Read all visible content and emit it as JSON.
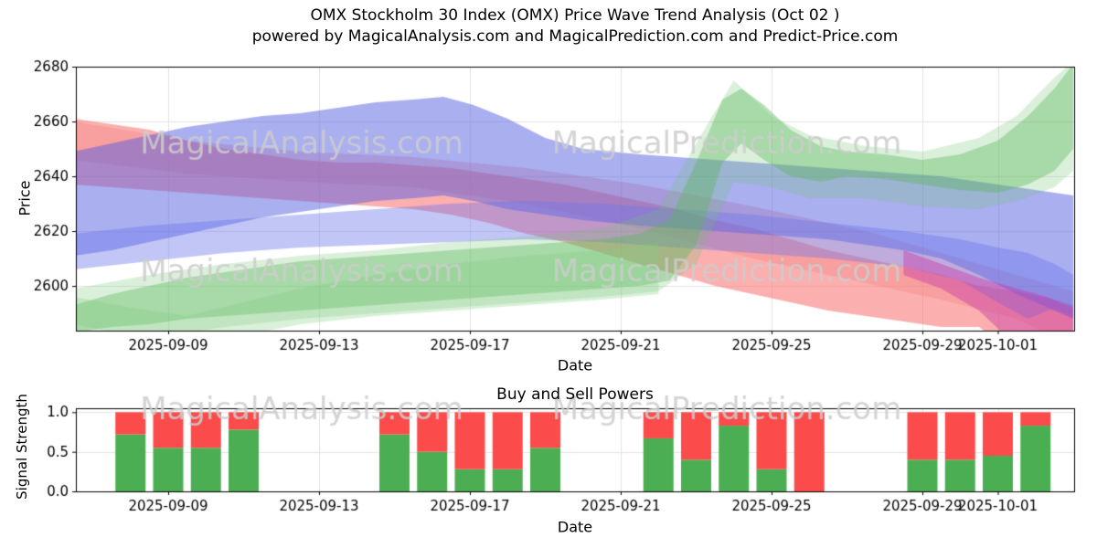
{
  "watermark": {
    "color": "rgba(205,205,205,0.85)",
    "items": [
      "MagicalAnalysis.com",
      "MagicalPrediction.com"
    ]
  },
  "chart_data": [
    {
      "type": "area",
      "title": "OMX Stockholm 30 Index (OMX) Price Wave Trend Analysis (Oct 02 )",
      "subtitle": "powered by MagicalAnalysis.com and MagicalPrediction.com and Predict-Price.com",
      "xlabel": "Date",
      "ylabel": "Price",
      "ylim": [
        2583.7,
        2680
      ],
      "yticks": [
        2600,
        2620,
        2640,
        2660,
        2680
      ],
      "xticks": [
        {
          "t": 2.5,
          "label": "2025-09-09"
        },
        {
          "t": 6.5,
          "label": "2025-09-13"
        },
        {
          "t": 10.5,
          "label": "2025-09-17"
        },
        {
          "t": 14.5,
          "label": "2025-09-21"
        },
        {
          "t": 18.5,
          "label": "2025-09-25"
        },
        {
          "t": 22.5,
          "label": "2025-09-29"
        },
        {
          "t": 24.5,
          "label": "2025-10-01"
        }
      ],
      "grid": true,
      "bands": [
        {
          "name": "sell-wave-main",
          "color": "rgba(250,110,110,0.55)",
          "points": [
            [
              0,
              2637,
              2661
            ],
            [
              1,
              2636,
              2659
            ],
            [
              2,
              2635,
              2657
            ],
            [
              3,
              2634,
              2653
            ],
            [
              4,
              2633,
              2650
            ],
            [
              5,
              2632,
              2648
            ],
            [
              6,
              2631,
              2646
            ],
            [
              7,
              2630,
              2645
            ],
            [
              8,
              2629,
              2645
            ],
            [
              9,
              2628,
              2644
            ],
            [
              10,
              2626,
              2643
            ],
            [
              11,
              2623,
              2641
            ],
            [
              12,
              2619,
              2639
            ],
            [
              13,
              2616,
              2637
            ],
            [
              14,
              2612,
              2634
            ],
            [
              15,
              2608,
              2631
            ],
            [
              16,
              2604,
              2628
            ],
            [
              17,
              2600,
              2624
            ],
            [
              18,
              2597,
              2621
            ],
            [
              19,
              2594,
              2617
            ],
            [
              20,
              2591,
              2613
            ],
            [
              21,
              2589,
              2610
            ],
            [
              22,
              2587,
              2607
            ],
            [
              23,
              2585,
              2604
            ],
            [
              24,
              2585,
              2600
            ],
            [
              25,
              2575,
              2598
            ],
            [
              26,
              2555,
              2595
            ],
            [
              26.5,
              2545,
              2593
            ]
          ]
        },
        {
          "name": "sell-wave-secondary",
          "color": "rgba(240,130,130,0.35)",
          "points": [
            [
              0,
              2646,
              2660
            ],
            [
              3,
              2641,
              2653
            ],
            [
              6,
              2638,
              2649
            ],
            [
              9,
              2636,
              2647
            ],
            [
              12,
              2630,
              2643
            ],
            [
              15,
              2621,
              2637
            ],
            [
              18,
              2610,
              2629
            ],
            [
              21,
              2601,
              2620
            ],
            [
              23,
              2595,
              2612
            ],
            [
              25,
              2588,
              2604
            ],
            [
              26.5,
              2578,
              2598
            ]
          ]
        },
        {
          "name": "trend-wave-main",
          "color": "rgba(85,95,225,0.50)",
          "points": [
            [
              0,
              2611,
              2649
            ],
            [
              1,
              2613,
              2652
            ],
            [
              2,
              2616,
              2655
            ],
            [
              3,
              2619,
              2658
            ],
            [
              4,
              2622,
              2660
            ],
            [
              5,
              2625,
              2662
            ],
            [
              6,
              2627,
              2663
            ],
            [
              7,
              2629,
              2665
            ],
            [
              8,
              2631,
              2667
            ],
            [
              9,
              2632,
              2668
            ],
            [
              9.8,
              2633,
              2669
            ],
            [
              10.6,
              2631,
              2666
            ],
            [
              11.5,
              2628,
              2661
            ],
            [
              12.5,
              2626,
              2654
            ],
            [
              13.5,
              2624,
              2650
            ],
            [
              15,
              2622,
              2648
            ],
            [
              16,
              2621,
              2647
            ],
            [
              17,
              2620,
              2646
            ],
            [
              18,
              2619,
              2645
            ],
            [
              19,
              2618,
              2644
            ],
            [
              20,
              2617,
              2643
            ],
            [
              21,
              2615,
              2642
            ],
            [
              22,
              2613,
              2641
            ],
            [
              23,
              2610,
              2640
            ],
            [
              24,
              2604,
              2638
            ],
            [
              25,
              2597,
              2636
            ],
            [
              26,
              2591,
              2634
            ],
            [
              26.5,
              2588,
              2633
            ]
          ]
        },
        {
          "name": "trend-wave-secondary",
          "color": "rgba(110,120,235,0.42)",
          "points": [
            [
              0,
              2606,
              2619
            ],
            [
              2,
              2609,
              2622
            ],
            [
              4,
              2612,
              2624
            ],
            [
              6,
              2614,
              2626
            ],
            [
              8,
              2615,
              2628
            ],
            [
              10,
              2616,
              2630
            ],
            [
              12,
              2617,
              2631
            ],
            [
              14,
              2616,
              2630
            ],
            [
              16,
              2614,
              2628
            ],
            [
              18,
              2612,
              2626
            ],
            [
              20,
              2610,
              2623
            ],
            [
              22,
              2607,
              2620
            ],
            [
              23.5,
              2602,
              2617
            ],
            [
              24.5,
              2594,
              2614
            ],
            [
              25.3,
              2588,
              2612
            ],
            [
              26,
              2592,
              2608
            ],
            [
              26.5,
              2589,
              2604
            ]
          ]
        },
        {
          "name": "buy-wave-main",
          "color": "rgba(85,180,85,0.40)",
          "points": [
            [
              0,
              2583,
              2593
            ],
            [
              1,
              2585,
              2597
            ],
            [
              2,
              2586,
              2600
            ],
            [
              3,
              2588,
              2603
            ],
            [
              4,
              2589,
              2605
            ],
            [
              5,
              2590,
              2607
            ],
            [
              6,
              2591,
              2609
            ],
            [
              7,
              2592,
              2610
            ],
            [
              8,
              2593,
              2611
            ],
            [
              9,
              2594,
              2612
            ],
            [
              10,
              2595,
              2613
            ],
            [
              11,
              2596,
              2614
            ],
            [
              12,
              2597,
              2615
            ],
            [
              13,
              2598,
              2616
            ],
            [
              14,
              2599,
              2617
            ],
            [
              15,
              2600,
              2619
            ],
            [
              15.8,
              2602,
              2624
            ],
            [
              16.5,
              2615,
              2645
            ],
            [
              17.2,
              2645,
              2668
            ],
            [
              17.7,
              2652,
              2672
            ],
            [
              18.3,
              2646,
              2666
            ],
            [
              19,
              2640,
              2657
            ],
            [
              19.8,
              2638,
              2651
            ],
            [
              20.5,
              2640,
              2649
            ],
            [
              21.5,
              2639,
              2648
            ],
            [
              22.5,
              2637,
              2646
            ],
            [
              23.5,
              2635,
              2648
            ],
            [
              24.5,
              2634,
              2653
            ],
            [
              25.3,
              2637,
              2662
            ],
            [
              26,
              2642,
              2672
            ],
            [
              26.5,
              2650,
              2681
            ]
          ]
        },
        {
          "name": "buy-wave-wide",
          "color": "rgba(110,195,110,0.25)",
          "points": [
            [
              0,
              2577,
              2599
            ],
            [
              2,
              2581,
              2604
            ],
            [
              4,
              2585,
              2608
            ],
            [
              6,
              2588,
              2611
            ],
            [
              8,
              2590,
              2613
            ],
            [
              10,
              2592,
              2616
            ],
            [
              12,
              2594,
              2618
            ],
            [
              14,
              2596,
              2621
            ],
            [
              15.5,
              2598,
              2628
            ],
            [
              16.5,
              2608,
              2652
            ],
            [
              17.5,
              2638,
              2675
            ],
            [
              18.5,
              2636,
              2662
            ],
            [
              19.5,
              2632,
              2655
            ],
            [
              21,
              2632,
              2651
            ],
            [
              22.5,
              2629,
              2649
            ],
            [
              24,
              2628,
              2654
            ],
            [
              25,
              2631,
              2662
            ],
            [
              26,
              2636,
              2676
            ],
            [
              26.5,
              2642,
              2682
            ]
          ]
        },
        {
          "name": "buy-wave-low",
          "color": "rgba(130,205,130,0.30)",
          "points": [
            [
              0,
              2586,
              2596
            ],
            [
              1.5,
              2582,
              2592
            ],
            [
              3,
              2579,
              2589
            ],
            [
              4.5,
              2582,
              2594
            ],
            [
              6,
              2586,
              2599
            ],
            [
              8,
              2589,
              2604
            ],
            [
              10,
              2591,
              2608
            ],
            [
              12,
              2593,
              2611
            ],
            [
              14,
              2595,
              2613
            ],
            [
              15.5,
              2597,
              2616
            ]
          ]
        },
        {
          "name": "momentum-wave-right",
          "color": "rgba(200,60,170,0.45)",
          "points": [
            [
              22,
              2604,
              2613
            ],
            [
              23,
              2599,
              2608
            ],
            [
              24,
              2591,
              2603
            ],
            [
              25,
              2578,
              2599
            ],
            [
              25.8,
              2562,
              2596
            ],
            [
              26.5,
              2542,
              2592
            ]
          ]
        }
      ]
    },
    {
      "type": "bar",
      "title": "Buy and Sell Powers",
      "xlabel": "Date",
      "ylabel": "Signal Strength",
      "ylim": [
        0,
        1.05
      ],
      "yticks": [
        "0.0",
        "0.5",
        "1.0"
      ],
      "xticks": [
        {
          "t": 2.5,
          "label": "2025-09-09"
        },
        {
          "t": 6.5,
          "label": "2025-09-13"
        },
        {
          "t": 10.5,
          "label": "2025-09-17"
        },
        {
          "t": 14.5,
          "label": "2025-09-21"
        },
        {
          "t": 18.5,
          "label": "2025-09-25"
        },
        {
          "t": 22.5,
          "label": "2025-09-29"
        },
        {
          "t": 24.5,
          "label": "2025-10-01"
        }
      ],
      "series": [
        {
          "name": "Buy",
          "color": "#4cae52"
        },
        {
          "name": "Sell",
          "color": "#fb4b4b"
        }
      ],
      "bars": [
        {
          "date": "2025-09-08",
          "buy": 0.72,
          "sell": 0.28
        },
        {
          "date": "2025-09-09",
          "buy": 0.55,
          "sell": 0.45
        },
        {
          "date": "2025-09-10",
          "buy": 0.55,
          "sell": 0.45
        },
        {
          "date": "2025-09-11",
          "buy": 0.78,
          "sell": 0.22
        },
        {
          "date": "2025-09-15",
          "buy": 0.72,
          "sell": 0.28
        },
        {
          "date": "2025-09-16",
          "buy": 0.5,
          "sell": 0.5
        },
        {
          "date": "2025-09-17",
          "buy": 0.28,
          "sell": 0.72
        },
        {
          "date": "2025-09-18",
          "buy": 0.28,
          "sell": 0.72
        },
        {
          "date": "2025-09-19",
          "buy": 0.55,
          "sell": 0.45
        },
        {
          "date": "2025-09-22",
          "buy": 0.67,
          "sell": 0.33
        },
        {
          "date": "2025-09-23",
          "buy": 0.4,
          "sell": 0.6
        },
        {
          "date": "2025-09-24",
          "buy": 0.83,
          "sell": 0.17
        },
        {
          "date": "2025-09-25",
          "buy": 0.28,
          "sell": 0.72
        },
        {
          "date": "2025-09-26",
          "buy": 0.0,
          "sell": 1.0
        },
        {
          "date": "2025-09-29",
          "buy": 0.4,
          "sell": 0.6
        },
        {
          "date": "2025-09-30",
          "buy": 0.4,
          "sell": 0.6
        },
        {
          "date": "2025-10-01",
          "buy": 0.45,
          "sell": 0.55
        },
        {
          "date": "2025-10-02",
          "buy": 0.83,
          "sell": 0.17
        }
      ]
    }
  ]
}
